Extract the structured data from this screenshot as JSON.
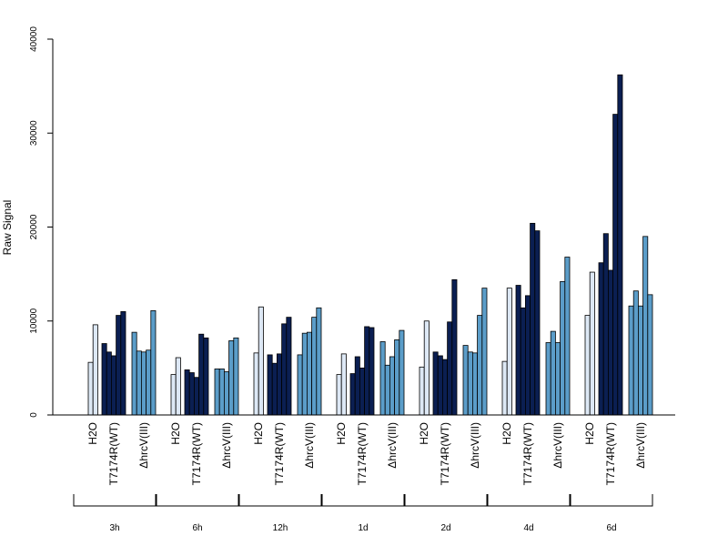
{
  "chart_data": {
    "type": "bar",
    "title": "",
    "ylabel": "Raw Signal",
    "xlabel": "",
    "ylim": [
      0,
      40000
    ],
    "yticks": [
      0,
      10000,
      20000,
      30000,
      40000
    ],
    "grid": false,
    "legend": "none",
    "treatment_labels": [
      "H2O",
      "T7174R(WT)",
      "ΔhrcV(III)"
    ],
    "treatment_colors": [
      "#dde8f5",
      "#0b1f52",
      "#5b9dc9"
    ],
    "groups": [
      {
        "time": "3h",
        "H2O": [
          5600,
          9600
        ],
        "T7174R(WT)": [
          7600,
          6700,
          6300,
          10600,
          11000
        ],
        "ΔhrcV(III)": [
          8800,
          6800,
          6700,
          6900,
          11100
        ]
      },
      {
        "time": "6h",
        "H2O": [
          4300,
          6100
        ],
        "T7174R(WT)": [
          4800,
          4500,
          4000,
          8600,
          8200
        ],
        "ΔhrcV(III)": [
          4900,
          4900,
          4600,
          7900,
          8200
        ]
      },
      {
        "time": "12h",
        "H2O": [
          6600,
          11500
        ],
        "T7174R(WT)": [
          6400,
          5500,
          6500,
          9700,
          10400
        ],
        "ΔhrcV(III)": [
          6400,
          8700,
          8800,
          10400,
          11400
        ]
      },
      {
        "time": "1d",
        "H2O": [
          4300,
          6500
        ],
        "T7174R(WT)": [
          4400,
          6200,
          5000,
          9400,
          9300
        ],
        "ΔhrcV(III)": [
          7800,
          5300,
          6200,
          8000,
          9000
        ]
      },
      {
        "time": "2d",
        "H2O": [
          5100,
          10000
        ],
        "T7174R(WT)": [
          6700,
          6300,
          5900,
          9900,
          14400
        ],
        "ΔhrcV(III)": [
          7400,
          6700,
          6600,
          10600,
          13500
        ]
      },
      {
        "time": "4d",
        "H2O": [
          5700,
          13500
        ],
        "T7174R(WT)": [
          13800,
          11400,
          12700,
          20400,
          19600
        ],
        "ΔhrcV(III)": [
          7700,
          8900,
          7700,
          14200,
          16800
        ]
      },
      {
        "time": "6d",
        "H2O": [
          10600,
          15200
        ],
        "T7174R(WT)": [
          16200,
          19300,
          15400,
          32000,
          36200
        ],
        "ΔhrcV(III)": [
          11600,
          13200,
          11600,
          19000,
          12800
        ]
      }
    ]
  }
}
